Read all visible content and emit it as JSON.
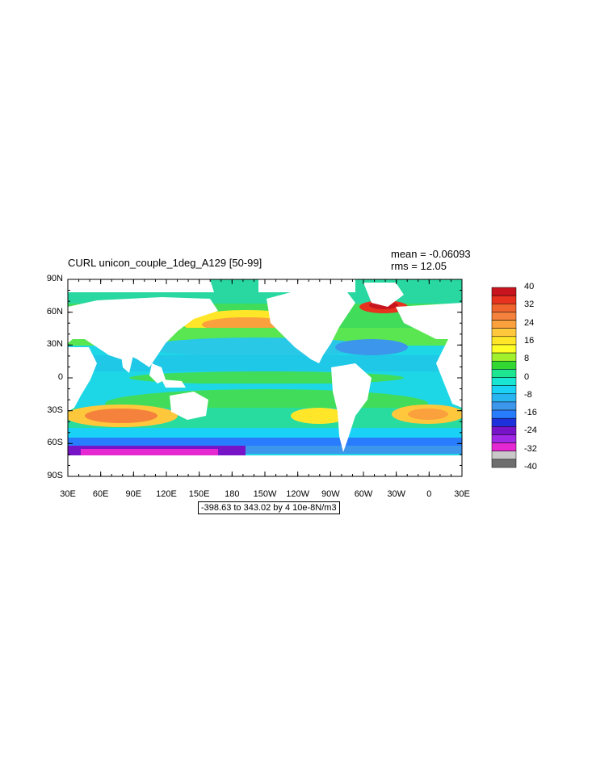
{
  "title": "CURL unicon_couple_1deg_A129 [50-99]",
  "stats": {
    "mean": "mean = -0.06093",
    "rms": "rms = 12.05"
  },
  "range_label": "-398.63 to 343.02 by 4 10e-8N/m3",
  "axes": {
    "y_ticks": [
      "90N",
      "60N",
      "30N",
      "0",
      "30S",
      "60S",
      "90S"
    ],
    "x_ticks": [
      "30E",
      "60E",
      "90E",
      "120E",
      "150E",
      "180",
      "150W",
      "120W",
      "90W",
      "60W",
      "30W",
      "0",
      "30E"
    ]
  },
  "colorbar": {
    "labels": [
      "40",
      "32",
      "24",
      "16",
      "8",
      "0",
      "-8",
      "-16",
      "-24",
      "-32",
      "-40"
    ],
    "colors": [
      "#c8141e",
      "#e6321e",
      "#f0642d",
      "#f5823c",
      "#faa03c",
      "#ffc83c",
      "#ffe628",
      "#ffff28",
      "#a0f02d",
      "#32d732",
      "#1ee690",
      "#19e6d2",
      "#19d2f5",
      "#28b4f0",
      "#3c96eb",
      "#287dff",
      "#1e32dc",
      "#7814c8",
      "#a028e6",
      "#e628d2",
      "#c8c8c8",
      "#6e6e6e"
    ]
  },
  "map": {
    "background": "#ffffff",
    "ocean_base": "#1ed7e6",
    "land": "#ffffff"
  }
}
